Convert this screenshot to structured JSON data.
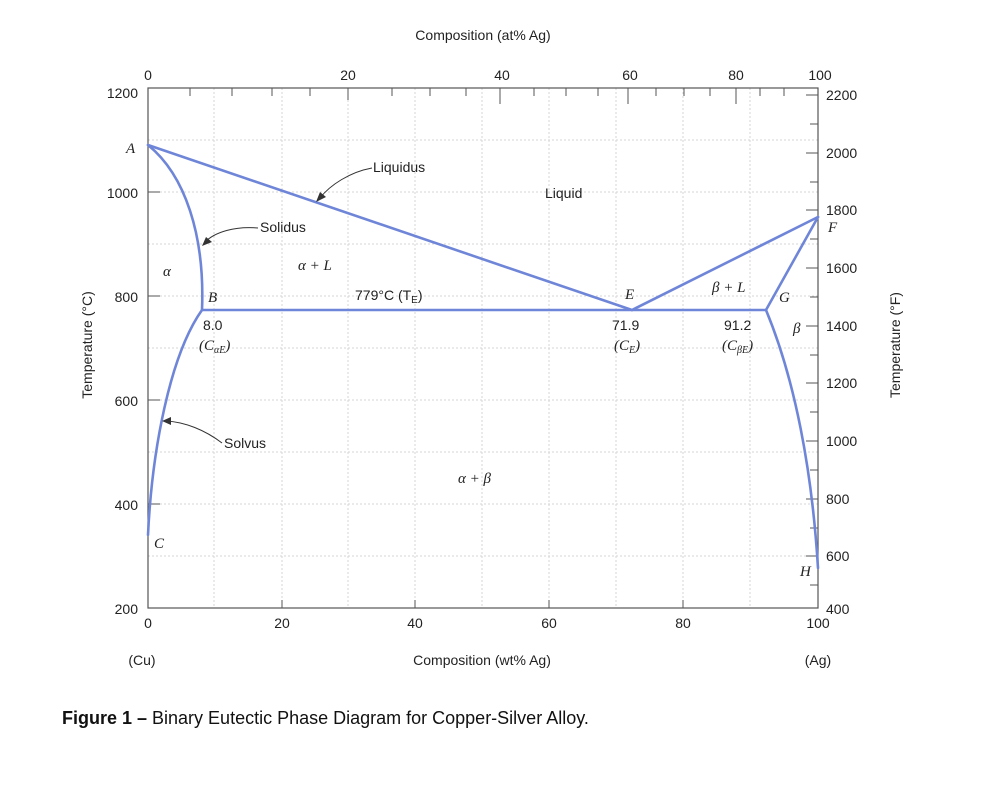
{
  "top_axis": {
    "title": "Composition (at% Ag)",
    "ticks": [
      "0",
      "20",
      "40",
      "60",
      "80",
      "100"
    ]
  },
  "bottom_axis": {
    "title": "Composition (wt% Ag)",
    "ticks": [
      "0",
      "20",
      "40",
      "60",
      "80",
      "100"
    ],
    "left_end_label": "(Cu)",
    "right_end_label": "(Ag)"
  },
  "left_axis": {
    "title": "Temperature (°C)",
    "ticks": [
      "1200",
      "1000",
      "800",
      "600",
      "400",
      "200"
    ]
  },
  "right_axis": {
    "title": "Temperature (°F)",
    "ticks": [
      "2200",
      "2000",
      "1800",
      "1600",
      "1400",
      "1200",
      "1000",
      "800",
      "600",
      "400"
    ]
  },
  "labels": {
    "liquidus": "Liquidus",
    "solidus": "Solidus",
    "solvus": "Solvus",
    "liquid": "Liquid",
    "alpha": "α",
    "alpha_plus_l": "α + L",
    "beta_plus_l": "β + L",
    "alpha_plus_beta": "α + β",
    "beta": "β",
    "eutectic_temp": "779°C (T",
    "eutectic_temp_sub": "E",
    "point_a": "A",
    "point_b": "B",
    "point_c": "C",
    "point_e": "E",
    "point_f": "F",
    "point_g": "G",
    "point_h": "H",
    "c_alpha_e_value": "8.0",
    "c_alpha_e_label": "(C",
    "c_alpha_e_sub": "αE",
    "c_e_value": "71.9",
    "c_e_label": "(C",
    "c_e_sub": "E",
    "c_beta_e_value": "91.2",
    "c_beta_e_label": "(C",
    "c_beta_e_sub": "βE"
  },
  "caption": {
    "prefix": "Figure 1 –",
    "text": " Binary Eutectic Phase Diagram for Copper-Silver Alloy."
  }
}
